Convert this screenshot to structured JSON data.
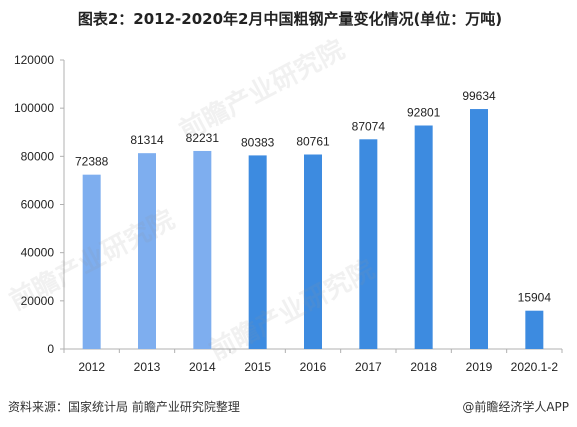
{
  "title": "图表2：2012-2020年2月中国粗钢产量变化情况(单位：万吨)",
  "chart_data": {
    "type": "bar",
    "categories": [
      "2012",
      "2013",
      "2014",
      "2015",
      "2016",
      "2017",
      "2018",
      "2019",
      "2020.1-2"
    ],
    "values": [
      72388,
      81314,
      82231,
      80383,
      80761,
      87074,
      92801,
      99634,
      15904
    ],
    "ylim": [
      0,
      120000
    ],
    "yticks": [
      0,
      20000,
      40000,
      60000,
      80000,
      100000,
      120000
    ],
    "grid": false,
    "legend": "none",
    "data_labels": true,
    "colors": {
      "bar_light": "#7EAEEF",
      "bar_dark": "#3D8BE0",
      "axis": "#b0b0b0",
      "text": "#222222"
    }
  },
  "footer": {
    "source": "资料来源：国家统计局 前瞻产业研究院整理",
    "brand": "@前瞻经济学人APP"
  },
  "watermark": "前瞻产业研究院"
}
